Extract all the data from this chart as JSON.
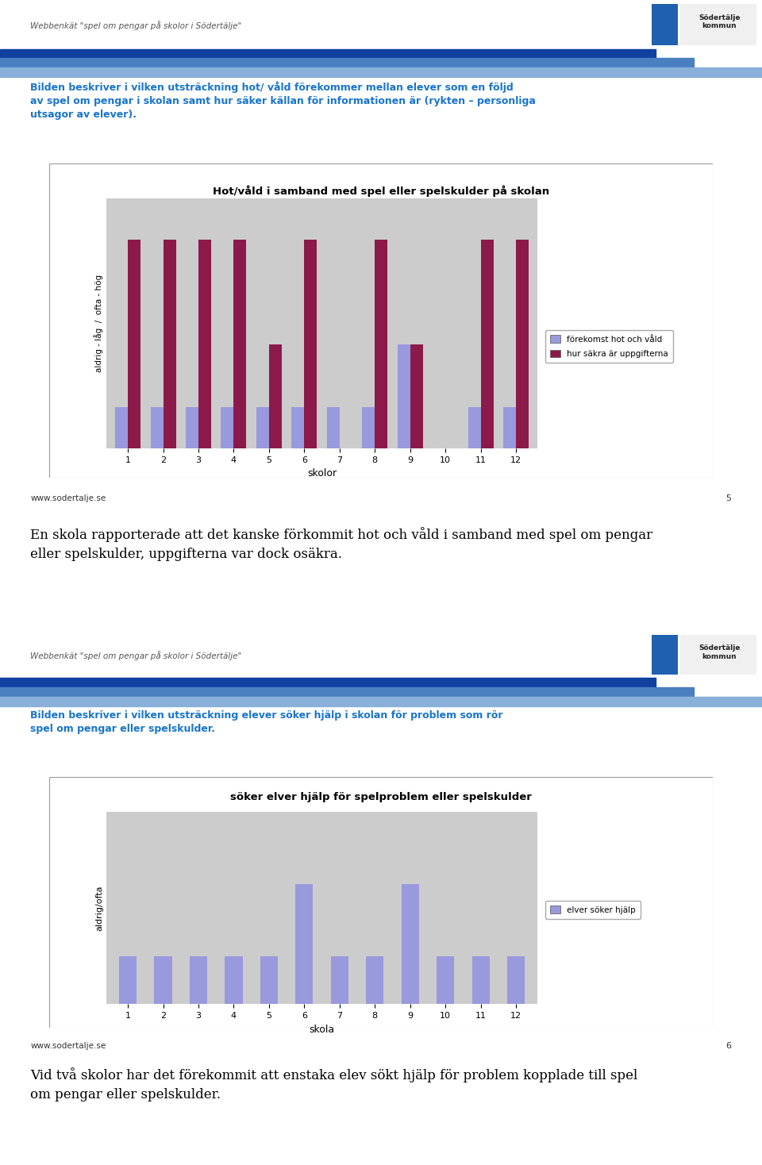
{
  "page_bg": "#ffffff",
  "header_text1": "Webbenkät \"spel om pengar på skolor i Södertälje\"",
  "intro_text1_bold": "Bilden beskriver i vilken utsträckning hot/ våld förekommer mellan elever som en följd\nav spel om pengar i skolan samt hur säker källan för informationen är",
  "intro_text1_small": " (rykten – personliga\nutsagor av elever).",
  "intro_text1_color": "#1874CD",
  "chart1_title": "Hot/våld i samband med spel eller spelskulder på skolan",
  "chart1_xlabel": "skolor",
  "chart1_ylabel": "aldrig - låg  /  ofta - hög",
  "chart1_schools": [
    1,
    2,
    3,
    4,
    5,
    6,
    7,
    8,
    9,
    10,
    11,
    12
  ],
  "chart1_blue_values": [
    1.0,
    1.0,
    1.0,
    1.0,
    1.0,
    1.0,
    1.0,
    1.0,
    2.5,
    0.0,
    1.0,
    1.0
  ],
  "chart1_red_values": [
    5.0,
    5.0,
    5.0,
    5.0,
    2.5,
    5.0,
    0.0,
    5.0,
    2.5,
    0.0,
    5.0,
    5.0
  ],
  "chart1_ylim": [
    0,
    6
  ],
  "chart1_blue_color": "#9999dd",
  "chart1_red_color": "#8b1a4a",
  "chart1_legend1": "förekomst hot och våld",
  "chart1_legend2": "hur säkra är uppgifterna",
  "chart1_bg": "#cccccc",
  "footer_text1": "www.sodertalje.se",
  "page_num1": "5",
  "middle_text": "En skola rapporterade att det kanske förkommit hot och våld i samband med spel om pengar\neller spelskulder, uppgifterna var dock osäkra.",
  "header_text2": "Webbenkät \"spel om pengar på skolor i Södertälje\"",
  "intro_text2": "Bilden beskriver i vilken utsträckning elever söker hjälp i skolan för problem som rör\nspel om pengar eller spelskulder.",
  "intro_text2_color": "#1874CD",
  "chart2_title": "söker elver hjälp för spelproblem eller spelskulder",
  "chart2_xlabel": "skola",
  "chart2_ylabel": "aldrig/ofta",
  "chart2_schools": [
    1,
    2,
    3,
    4,
    5,
    6,
    7,
    8,
    9,
    10,
    11,
    12
  ],
  "chart2_values": [
    1.0,
    1.0,
    1.0,
    1.0,
    1.0,
    2.5,
    1.0,
    1.0,
    2.5,
    1.0,
    1.0,
    1.0
  ],
  "chart2_ylim": [
    0,
    4
  ],
  "chart2_blue_color": "#9999dd",
  "chart2_legend": "elver söker hjälp",
  "chart2_bg": "#cccccc",
  "footer_text2": "www.sodertalje.se",
  "page_num2": "6",
  "bottom_text": "Vid två skolor har det förekommit att enstaka elev sökt hjälp för problem kopplade till spel\nom pengar eller spelskulder."
}
